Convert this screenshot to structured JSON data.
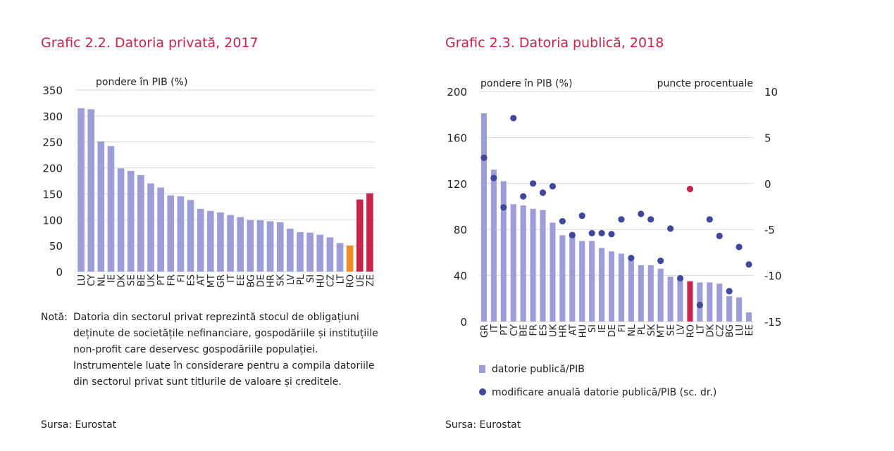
{
  "chart_data": [
    {
      "type": "bar",
      "title": "Grafic 2.2. Datoria privată, 2017",
      "ylabel": "pondere în PIB (%)",
      "ylim": [
        0,
        350
      ],
      "yticks": [
        0,
        50,
        100,
        150,
        200,
        250,
        300,
        350
      ],
      "grid": true,
      "categories": [
        "LU",
        "CY",
        "NL",
        "IE",
        "DK",
        "SE",
        "BE",
        "UK",
        "PT",
        "FR",
        "FI",
        "ES",
        "AT",
        "MT",
        "GR",
        "IT",
        "EE",
        "BG",
        "DE",
        "HR",
        "SK",
        "LV",
        "PL",
        "SI",
        "HU",
        "CZ",
        "LT",
        "RO",
        "UE",
        "ZE"
      ],
      "values": [
        315,
        313,
        251,
        242,
        199,
        194,
        186,
        170,
        162,
        147,
        145,
        138,
        121,
        117,
        114,
        109,
        105,
        99,
        99,
        97,
        95,
        83,
        76,
        75,
        71,
        66,
        55,
        50,
        139,
        151
      ],
      "colors": {
        "default": "#9d9dd8",
        "RO": "#f08a24",
        "UE": "#c8234a",
        "ZE": "#c8234a"
      },
      "note_label": "Notă:",
      "note": "Datoria din sectorul privat reprezintă stocul de obligațiuni deținute de societățile nefinanciare, gospodăriile și instituțiile non-profit care deservesc gospodăriile populației. Instrumentele luate în considerare pentru a compila datoriile din sectorul privat sunt titlurile de valoare și creditele.",
      "source": "Sursa: Eurostat"
    },
    {
      "type": "bar",
      "title": "Grafic 2.3. Datoria publică, 2018",
      "ylabel": "pondere în PIB (%)",
      "ylabel_right": "puncte procentuale",
      "ylim": [
        0,
        200
      ],
      "yticks": [
        0,
        40,
        80,
        120,
        160,
        200
      ],
      "ylim_right": [
        -15,
        10
      ],
      "yticks_right": [
        -15,
        -10,
        -5,
        0,
        5,
        10
      ],
      "grid": true,
      "categories": [
        "GR",
        "IT",
        "PT",
        "CY",
        "BE",
        "FR",
        "ES",
        "UK",
        "HR",
        "AT",
        "HU",
        "SI",
        "IE",
        "DE",
        "FI",
        "NL",
        "PL",
        "SK",
        "MT",
        "SE",
        "LV",
        "RO",
        "LT",
        "DK",
        "CZ",
        "BG",
        "LU",
        "EE"
      ],
      "series": [
        {
          "name": "datorie publică/PIB",
          "kind": "bar",
          "values": [
            181,
            132,
            122,
            102,
            101,
            98,
            97,
            86,
            75,
            74,
            70,
            70,
            64,
            61,
            59,
            53,
            49,
            49,
            46,
            39,
            37,
            35,
            34,
            34,
            33,
            22,
            21,
            8
          ]
        },
        {
          "name": "modificare anuală datorie publică/PIB (sc. dr.)",
          "kind": "scatter",
          "axis": "right",
          "values": [
            2.8,
            0.6,
            -2.6,
            7.1,
            -1.4,
            0.0,
            -1.0,
            -0.3,
            -4.1,
            -5.6,
            -3.5,
            -5.4,
            -5.4,
            -5.5,
            -3.9,
            -8.1,
            -3.3,
            -3.9,
            -8.4,
            -4.9,
            -10.3,
            -0.6,
            -13.2,
            -3.9,
            -5.7,
            -11.7,
            -6.9,
            -8.8
          ]
        }
      ],
      "colors": {
        "bar": "#9d9dd8",
        "bar_highlight": "#c8234a",
        "dot": "#40479c",
        "dot_highlight": "#c8234a",
        "highlight": "RO"
      },
      "source": "Sursa: Eurostat"
    }
  ]
}
